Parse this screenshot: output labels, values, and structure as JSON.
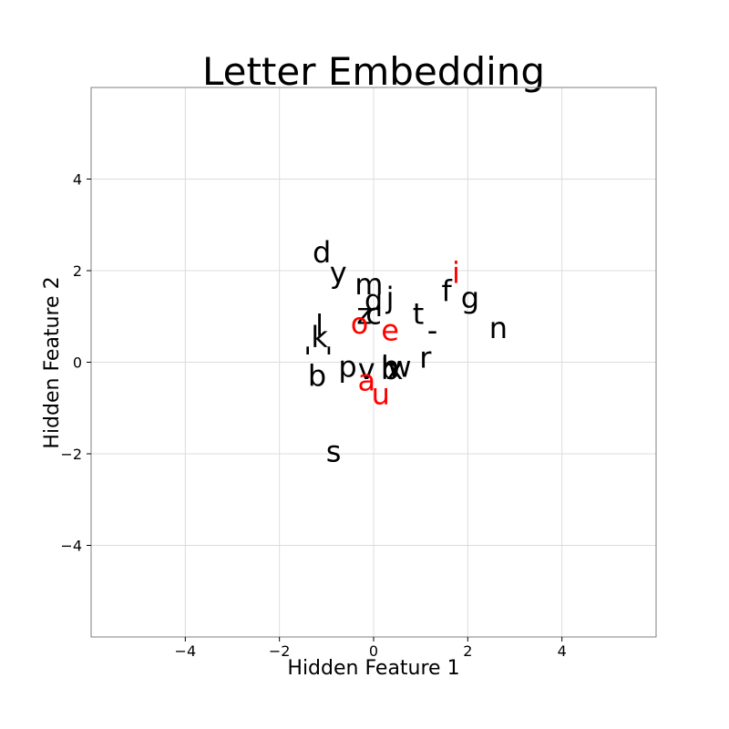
{
  "chart_data": {
    "type": "scatter",
    "title": "Letter Embedding",
    "xlabel": "Hidden Feature 1",
    "ylabel": "Hidden Feature 2",
    "xlim": [
      -6,
      6
    ],
    "ylim": [
      -6,
      6
    ],
    "xticks": [
      -4,
      -2,
      0,
      2,
      4
    ],
    "yticks": [
      -4,
      -2,
      0,
      2,
      4
    ],
    "xtick_labels": [
      "−4",
      "−2",
      "0",
      "2",
      "4"
    ],
    "ytick_labels": [
      "−4",
      "−2",
      "0",
      "2",
      "4"
    ],
    "grid": true,
    "colors": {
      "vowel": "#ff0000",
      "consonant": "#000000"
    },
    "points": [
      {
        "label": "d",
        "x": -1.1,
        "y": 2.4,
        "group": "consonant"
      },
      {
        "label": "y",
        "x": -0.75,
        "y": 1.95,
        "group": "consonant"
      },
      {
        "label": "m",
        "x": -0.1,
        "y": 1.7,
        "group": "consonant"
      },
      {
        "label": "i",
        "x": 1.75,
        "y": 1.95,
        "group": "vowel"
      },
      {
        "label": "f",
        "x": 1.55,
        "y": 1.55,
        "group": "consonant"
      },
      {
        "label": "g",
        "x": 2.05,
        "y": 1.4,
        "group": "consonant"
      },
      {
        "label": "q",
        "x": 0.0,
        "y": 1.35,
        "group": "consonant"
      },
      {
        "label": "j",
        "x": 0.35,
        "y": 1.4,
        "group": "consonant"
      },
      {
        "label": "z",
        "x": -0.2,
        "y": 1.05,
        "group": "consonant"
      },
      {
        "label": "c",
        "x": 0.0,
        "y": 1.05,
        "group": "consonant"
      },
      {
        "label": "t",
        "x": 0.95,
        "y": 1.05,
        "group": "consonant"
      },
      {
        "label": "o",
        "x": -0.3,
        "y": 0.85,
        "group": "vowel"
      },
      {
        "label": "e",
        "x": 0.35,
        "y": 0.7,
        "group": "vowel"
      },
      {
        "label": "n",
        "x": 2.65,
        "y": 0.75,
        "group": "consonant"
      },
      {
        "label": "-",
        "x": 1.25,
        "y": 0.7,
        "group": "consonant"
      },
      {
        "label": "l",
        "x": -1.15,
        "y": 0.8,
        "group": "consonant"
      },
      {
        "label": "k",
        "x": -1.15,
        "y": 0.55,
        "group": "consonant"
      },
      {
        "label": "'",
        "x": -1.4,
        "y": 0.1,
        "group": "consonant"
      },
      {
        "label": "'",
        "x": -0.95,
        "y": 0.1,
        "group": "consonant"
      },
      {
        "label": "r",
        "x": 1.1,
        "y": 0.1,
        "group": "consonant"
      },
      {
        "label": "p",
        "x": -0.55,
        "y": -0.1,
        "group": "consonant"
      },
      {
        "label": "v",
        "x": -0.15,
        "y": -0.15,
        "group": "consonant"
      },
      {
        "label": "b",
        "x": 0.35,
        "y": -0.15,
        "group": "consonant"
      },
      {
        "label": "h",
        "x": 0.35,
        "y": -0.1,
        "group": "consonant"
      },
      {
        "label": "x",
        "x": 0.45,
        "y": -0.15,
        "group": "consonant"
      },
      {
        "label": "w",
        "x": 0.55,
        "y": -0.1,
        "group": "consonant"
      },
      {
        "label": "b",
        "x": -1.2,
        "y": -0.3,
        "group": "consonant"
      },
      {
        "label": "a",
        "x": -0.15,
        "y": -0.4,
        "group": "vowel"
      },
      {
        "label": "u",
        "x": 0.15,
        "y": -0.7,
        "group": "vowel"
      },
      {
        "label": "s",
        "x": -0.85,
        "y": -1.95,
        "group": "consonant"
      }
    ]
  }
}
